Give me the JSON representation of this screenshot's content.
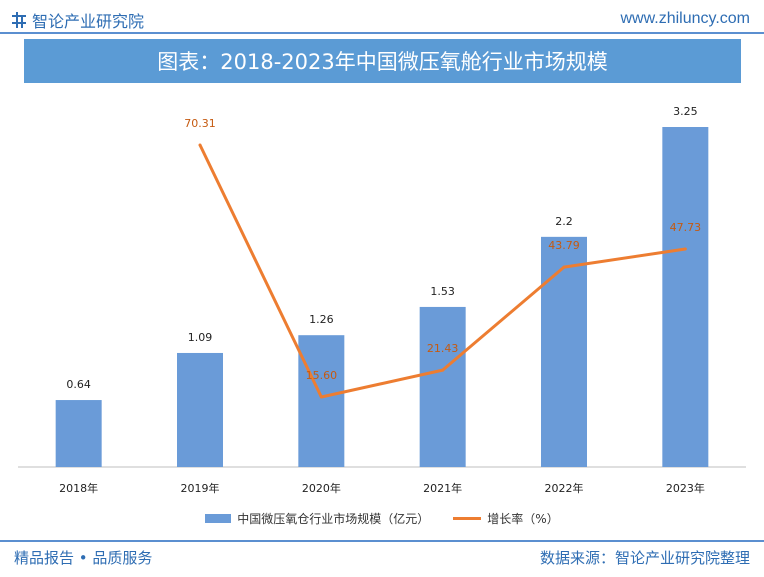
{
  "header": {
    "brand": "智论产业研究院",
    "website": "www.zhiluncy.com",
    "title": "图表：2018-2023年中国微压氧舱行业市场规模"
  },
  "footer": {
    "left": "精品报告 • 品质服务",
    "right": "数据来源：智论产业研究院整理"
  },
  "colors": {
    "bar": "#6a9bd8",
    "line": "#ed7d31",
    "brand": "#2e6db3",
    "banner": "#5b9bd5"
  },
  "chart_data": {
    "type": "bar",
    "categories": [
      "2018年",
      "2019年",
      "2020年",
      "2021年",
      "2022年",
      "2023年"
    ],
    "series": [
      {
        "name": "中国微压氧仓行业市场规模（亿元）",
        "type": "bar",
        "values": [
          0.64,
          1.09,
          1.26,
          1.53,
          2.2,
          3.25
        ],
        "labels": [
          "0.64",
          "1.09",
          "1.26",
          "1.53",
          "2.2",
          "3.25"
        ]
      },
      {
        "name": "增长率（%）",
        "type": "line",
        "values": [
          null,
          70.31,
          15.6,
          21.43,
          43.79,
          47.73
        ],
        "labels": [
          "",
          "70.31",
          "15.60",
          "21.43",
          "43.79",
          "47.73"
        ]
      }
    ],
    "grid": false,
    "legend_position": "bottom"
  }
}
